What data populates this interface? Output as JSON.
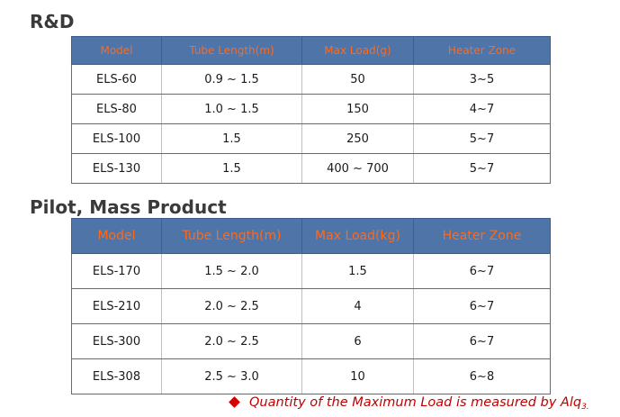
{
  "sections": [
    {
      "title": "R&D",
      "headers": [
        "Model",
        "Tube Length(m)",
        "Max Load(g)",
        "Heater Zone"
      ],
      "rows": [
        [
          "ELS-60",
          "0.9 ~ 1.5",
          "50",
          "3~5"
        ],
        [
          "ELS-80",
          "1.0 ~ 1.5",
          "150",
          "4~7"
        ],
        [
          "ELS-100",
          "1.5",
          "250",
          "5~7"
        ],
        [
          "ELS-130",
          "1.5",
          "400 ~ 700",
          "5~7"
        ]
      ]
    },
    {
      "title": "Pilot, Mass Product",
      "headers": [
        "Model",
        "Tube Length(m)",
        "Max Load(kg)",
        "Heater Zone"
      ],
      "rows": [
        [
          "ELS-170",
          "1.5 ~ 2.0",
          "1.5",
          "6~7"
        ],
        [
          "ELS-210",
          "2.0 ~ 2.5",
          "4",
          "6~7"
        ],
        [
          "ELS-300",
          "2.0 ~ 2.5",
          "6",
          "6~7"
        ],
        [
          "ELS-308",
          "2.5 ~ 3.0",
          "10",
          "6~8"
        ]
      ]
    }
  ],
  "note": {
    "bullet_icon": "diamond-bullet-icon",
    "text": "Quantity of the Maximum Load is measured by Alq",
    "subscript": "3."
  },
  "colors": {
    "header_bg": "#4f74a8",
    "header_text": "#ff6a1a",
    "note_text": "#c00000"
  }
}
